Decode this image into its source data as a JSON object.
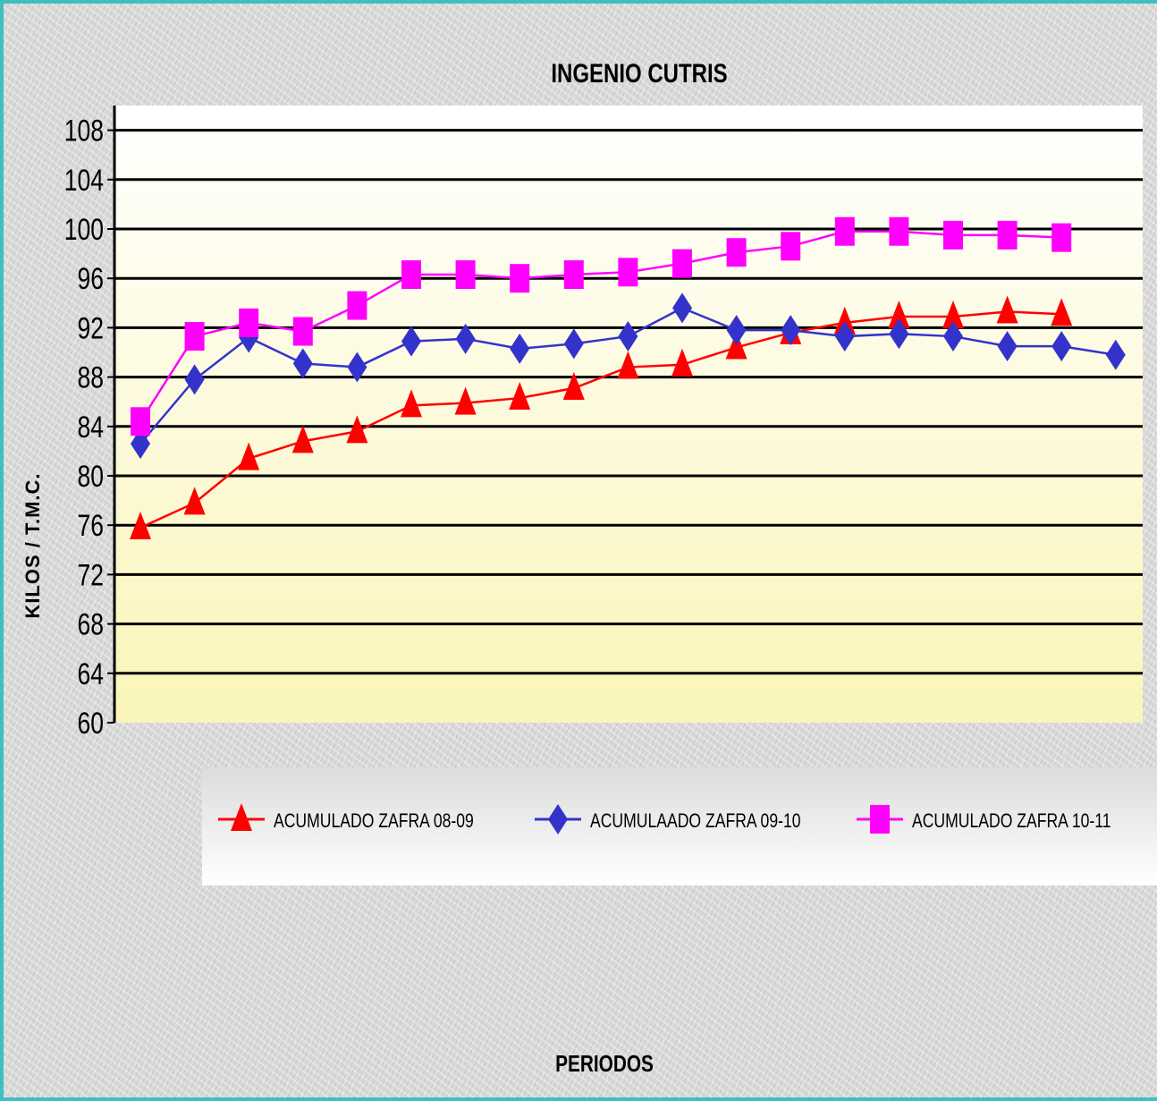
{
  "chart_data": {
    "type": "line",
    "title": "INGENIO CUTRIS",
    "xlabel": "PERIODOS",
    "ylabel": "KILOS / T.M.C.",
    "ylim": [
      60,
      110
    ],
    "yticks": [
      60,
      64,
      68,
      72,
      76,
      80,
      84,
      88,
      92,
      96,
      100,
      104,
      108
    ],
    "x": [
      1,
      2,
      3,
      4,
      5,
      6,
      7,
      8,
      9,
      10,
      11,
      12,
      13,
      14,
      15,
      16,
      17,
      18,
      19
    ],
    "grid": true,
    "legend_position": "bottom-right",
    "series": [
      {
        "name": "ACUMULADO ZAFRA 08-09",
        "color": "#ff0000",
        "marker": "triangle",
        "values": [
          75.8,
          77.8,
          81.4,
          82.8,
          83.6,
          85.7,
          85.9,
          86.3,
          87.1,
          88.8,
          89.0,
          90.4,
          91.6,
          92.4,
          92.9,
          92.9,
          93.3,
          93.1,
          null
        ]
      },
      {
        "name": "ACUMULAADO ZAFRA 09-10",
        "color": "#3333cc",
        "marker": "diamond",
        "values": [
          82.6,
          87.8,
          91.2,
          89.1,
          88.8,
          90.9,
          91.1,
          90.3,
          90.7,
          91.3,
          93.6,
          91.8,
          91.8,
          91.3,
          91.5,
          91.3,
          90.5,
          90.5,
          89.8
        ]
      },
      {
        "name": "ACUMULADO ZAFRA 10-11",
        "color": "#ff00ff",
        "marker": "square",
        "values": [
          84.4,
          91.3,
          92.4,
          91.7,
          93.8,
          96.3,
          96.3,
          96.0,
          96.3,
          96.5,
          97.2,
          98.1,
          98.6,
          99.8,
          99.8,
          99.5,
          99.5,
          99.3,
          null
        ]
      }
    ]
  }
}
